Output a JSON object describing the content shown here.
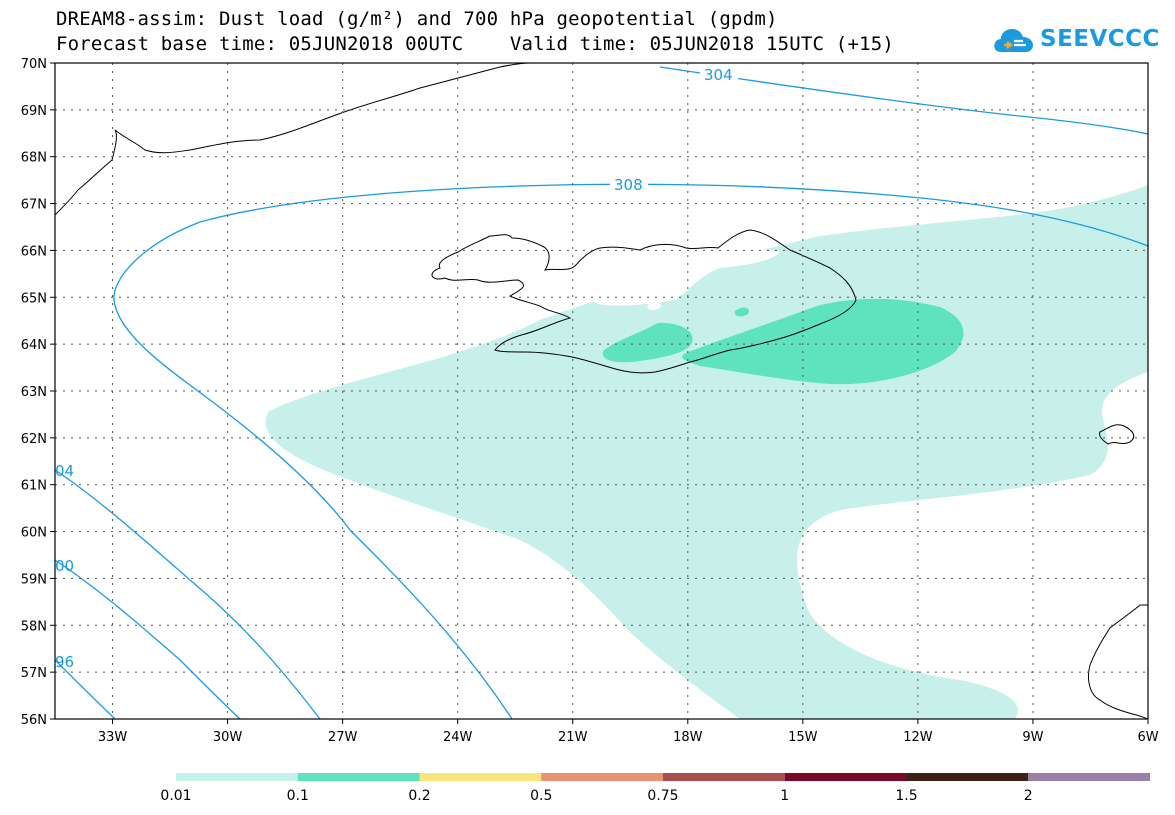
{
  "header": {
    "title_line1": "DREAM8-assim: Dust load (g/m²) and 700 hPa geopotential (gpdm)",
    "title_line2": "Forecast base time: 05JUN2018 00UTC    Valid time: 05JUN2018 15UTC (+15)"
  },
  "logo": {
    "text": "SEEVCCC",
    "icon": "cloud-logo-icon",
    "color": "#1b9ae0"
  },
  "map": {
    "lat_labels": [
      "70N",
      "69N",
      "68N",
      "67N",
      "66N",
      "65N",
      "64N",
      "63N",
      "62N",
      "61N",
      "60N",
      "59N",
      "58N",
      "57N",
      "56N"
    ],
    "lon_labels": [
      "33W",
      "30W",
      "27W",
      "24W",
      "21W",
      "18W",
      "15W",
      "12W",
      "9W",
      "6W"
    ],
    "contour_labels": [
      "304",
      "308",
      "04",
      "00",
      "96"
    ],
    "contour_color": "#1b9ae0",
    "dust_colors": {
      "low": "#c6f0e9",
      "mid": "#5ee3bd"
    }
  },
  "colorbar": {
    "labels": [
      "0.01",
      "0.1",
      "0.2",
      "0.5",
      "0.75",
      "1",
      "1.5",
      "2"
    ],
    "colors": [
      "#c6f0e9",
      "#5ee3bd",
      "#f8e67c",
      "#e59370",
      "#a8504a",
      "#7a0a2a",
      "#3a2218",
      "#9c7fa6"
    ]
  }
}
